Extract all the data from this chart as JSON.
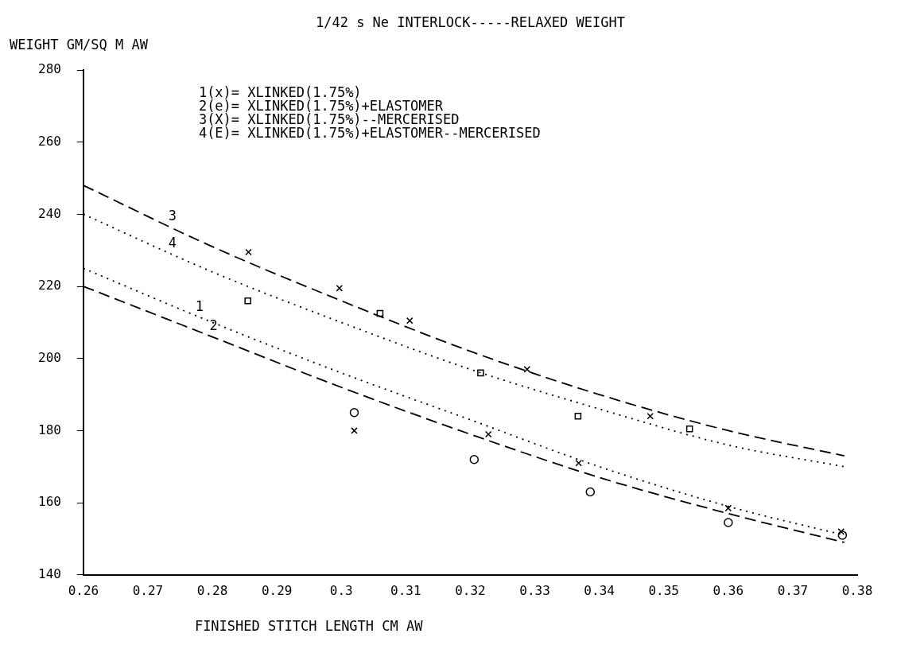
{
  "chart_data": {
    "type": "scatter",
    "title": "1/42 s Ne INTERLOCK-----RELAXED WEIGHT",
    "xlabel": "FINISHED STITCH LENGTH CM AW",
    "ylabel": "WEIGHT GM/SQ M AW",
    "xlim": [
      0.26,
      0.38
    ],
    "xticks": [
      0.26,
      0.27,
      0.28,
      0.29,
      0.3,
      0.31,
      0.32,
      0.33,
      0.34,
      0.35,
      0.36,
      0.37,
      0.38
    ],
    "ylim": [
      140,
      280
    ],
    "yticks": [
      140,
      160,
      180,
      200,
      220,
      240,
      260,
      280
    ],
    "grid": false,
    "legend": false,
    "series": [
      {
        "type": "scatter",
        "color": "#000000",
        "marker": "cross",
        "x": [
          0.302,
          0.3228,
          0.3368,
          0.36,
          0.3775
        ],
        "values": [
          180,
          179,
          171,
          158.5,
          152
        ]
      },
      {
        "type": "scatter",
        "color": "#000000",
        "marker": "circle",
        "x": [
          0.302,
          0.3206,
          0.3386,
          0.36,
          0.3777
        ],
        "values": [
          185,
          172,
          163,
          154.5,
          151
        ]
      },
      {
        "type": "scatter",
        "color": "#000000",
        "marker": "cross",
        "x": [
          0.2856,
          0.2997,
          0.3106,
          0.3288,
          0.3479
        ],
        "values": [
          229.5,
          219.5,
          210.5,
          197,
          184
        ]
      },
      {
        "type": "scatter",
        "color": "#000000",
        "marker": "square",
        "x": [
          0.2855,
          0.306,
          0.3216,
          0.3367,
          0.354
        ],
        "values": [
          216,
          212.5,
          196,
          184,
          180.5
        ]
      },
      {
        "type": "line",
        "color": "#000000",
        "marker": "none",
        "line_style": "dashed",
        "x": [
          0.26,
          0.28,
          0.3,
          0.32,
          0.34,
          0.36,
          0.378
        ],
        "values": [
          248,
          231,
          216,
          202,
          190,
          180,
          173
        ]
      },
      {
        "type": "line",
        "color": "#000000",
        "marker": "none",
        "line_style": "dotted",
        "x": [
          0.26,
          0.28,
          0.3,
          0.32,
          0.34,
          0.36,
          0.378
        ],
        "values": [
          240,
          224,
          210,
          197,
          186,
          176,
          170
        ]
      },
      {
        "type": "line",
        "color": "#000000",
        "marker": "none",
        "line_style": "dotted",
        "x": [
          0.26,
          0.28,
          0.3,
          0.32,
          0.34,
          0.36,
          0.378
        ],
        "values": [
          225,
          210,
          196,
          183,
          170,
          159,
          151
        ]
      },
      {
        "type": "line",
        "color": "#000000",
        "marker": "none",
        "line_style": "dashed",
        "x": [
          0.26,
          0.28,
          0.3,
          0.32,
          0.34,
          0.36,
          0.378
        ],
        "values": [
          220,
          206,
          192,
          179,
          167,
          157,
          149
        ]
      }
    ],
    "annotations": [
      "1(x)= XLINKED(1.75%)",
      "2(e)= XLINKED(1.75%)+ELASTOMER",
      "3(X)= XLINKED(1.75%)--MERCERISED",
      "4(E)= XLINKED(1.75%)+ELASTOMER--MERCERISED",
      {
        "text": "3",
        "x": 0.2738,
        "y": 236.5
      },
      {
        "text": "4",
        "x": 0.2738,
        "y": 229
      },
      {
        "text": "1",
        "x": 0.278,
        "y": 211.5
      },
      {
        "text": "2",
        "x": 0.2802,
        "y": 206
      }
    ]
  }
}
